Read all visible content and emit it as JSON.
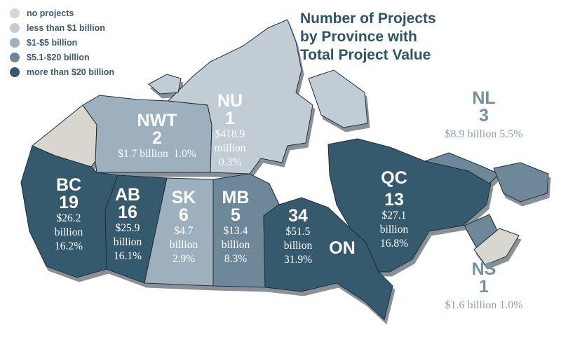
{
  "legend": [
    {
      "label": "no projects",
      "color": "#d9d6cf"
    },
    {
      "label": "less than $1 billion",
      "color": "#c2ccd5"
    },
    {
      "label": "$1-$5 billion",
      "color": "#9eafbe"
    },
    {
      "label": "$5.1-$20 billion",
      "color": "#6e8799"
    },
    {
      "label": "more than $20 billion",
      "color": "#365a6d"
    }
  ],
  "title": [
    "Number of Projects",
    "by Province with",
    "Total Project Value"
  ],
  "provinces": {
    "nu": {
      "abbr": "NU",
      "count": "1",
      "value_lines": [
        "$418.9",
        "million",
        "0.3%"
      ],
      "tier": "less than $1 billion"
    },
    "nwt": {
      "abbr": "NWT",
      "count": "2",
      "value_lines": [
        "$1.7 billion  1.0%"
      ],
      "tier": "$1-$5 billion"
    },
    "bc": {
      "abbr": "BC",
      "count": "19",
      "value_lines": [
        "$26.2",
        "billion",
        "16.2%"
      ],
      "tier": "more than $20 billion"
    },
    "ab": {
      "abbr": "AB",
      "count": "16",
      "value_lines": [
        "$25.9",
        "billion",
        "16.1%"
      ],
      "tier": "more than $20 billion"
    },
    "sk": {
      "abbr": "SK",
      "count": "6",
      "value_lines": [
        "$4.7",
        "billion",
        "2.9%"
      ],
      "tier": "$1-$5 billion"
    },
    "mb": {
      "abbr": "MB",
      "count": "5",
      "value_lines": [
        "$13.4",
        "billion",
        "8.3%"
      ],
      "tier": "$5.1-$20 billion"
    },
    "on": {
      "abbr": "ON",
      "count": "34",
      "value_lines": [
        "$51.5",
        "billion",
        "31.9%"
      ],
      "tier": "more than $20 billion"
    },
    "qc": {
      "abbr": "QC",
      "count": "13",
      "value_lines": [
        "$27.1",
        "billion",
        "16.8%"
      ],
      "tier": "more than $20 billion"
    },
    "nl": {
      "abbr": "NL",
      "count": "3",
      "value_lines": [
        "$8.9 billion 5.5%"
      ],
      "tier": "$5.1-$20 billion"
    },
    "ns": {
      "abbr": "NS",
      "count": "1",
      "value_lines": [
        "$1.6 billion 1.0%"
      ],
      "tier": "$1-$5 billion"
    }
  }
}
